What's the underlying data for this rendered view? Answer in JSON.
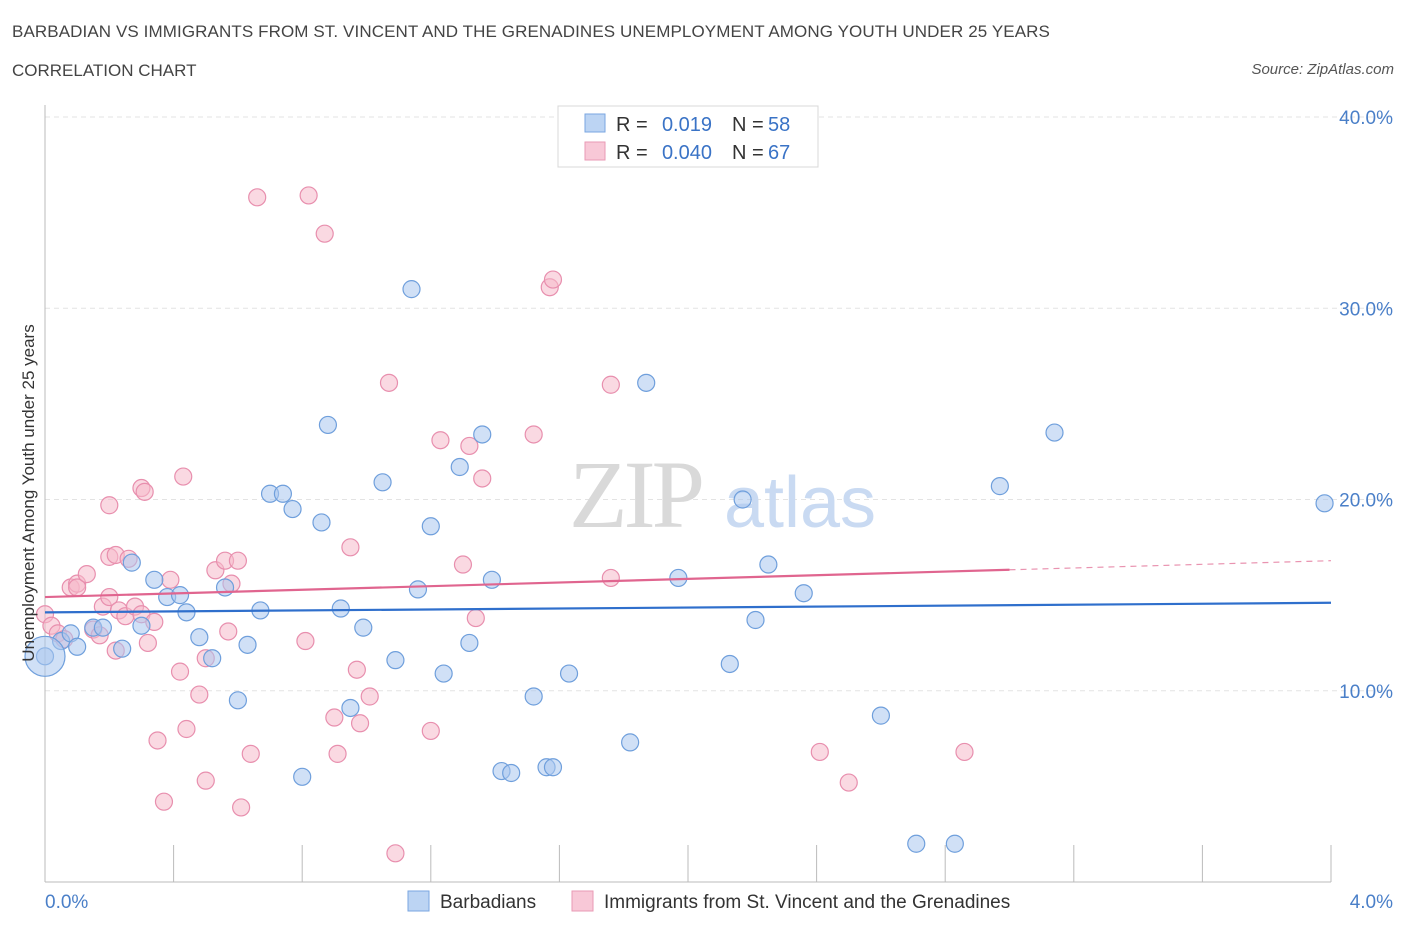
{
  "title": "BARBADIAN VS IMMIGRANTS FROM ST. VINCENT AND THE GRENADINES UNEMPLOYMENT AMONG YOUTH UNDER 25 YEARS",
  "subtitle": "CORRELATION CHART",
  "source": "Source: ZipAtlas.com",
  "watermark": {
    "zip": "ZIP",
    "atlas": "atlas"
  },
  "stats": [
    {
      "r_label": "R = ",
      "r_value": "0.019",
      "n_label": "N = ",
      "n_value": "58"
    },
    {
      "r_label": "R = ",
      "r_value": "0.040",
      "n_label": "N = ",
      "n_value": "67"
    }
  ],
  "chart_data": {
    "type": "scatter",
    "xlabel": "",
    "ylabel": "Unemployment Among Youth under 25 years",
    "xlim": [
      0,
      4
    ],
    "ylim": [
      0,
      40
    ],
    "x_ticks_labels": [
      "0.0%",
      "4.0%"
    ],
    "y_ticks": [
      10,
      20,
      30,
      40
    ],
    "y_ticks_labels": [
      "10.0%",
      "20.0%",
      "30.0%",
      "40.0%"
    ],
    "grid": true,
    "legend_position": "bottom",
    "series": [
      {
        "name": "Barbadians",
        "color": "#a9c7ee",
        "line_color": "#2f6fcc",
        "trend": {
          "x0": 0,
          "y0": 14.1,
          "x1": 4.0,
          "y1": 14.6,
          "dash_from": null
        },
        "points": [
          [
            0.0,
            11.8
          ],
          [
            0.05,
            12.6
          ],
          [
            0.08,
            13.0
          ],
          [
            0.1,
            12.3
          ],
          [
            0.15,
            13.3
          ],
          [
            0.18,
            13.3
          ],
          [
            0.24,
            12.2
          ],
          [
            0.27,
            16.7
          ],
          [
            0.3,
            13.4
          ],
          [
            0.34,
            15.8
          ],
          [
            0.38,
            14.9
          ],
          [
            0.42,
            15.0
          ],
          [
            0.44,
            14.1
          ],
          [
            0.48,
            12.8
          ],
          [
            0.52,
            11.7
          ],
          [
            0.56,
            15.4
          ],
          [
            0.6,
            9.5
          ],
          [
            0.63,
            12.4
          ],
          [
            0.67,
            14.2
          ],
          [
            0.7,
            20.3
          ],
          [
            0.74,
            20.3
          ],
          [
            0.77,
            19.5
          ],
          [
            0.8,
            5.5
          ],
          [
            0.86,
            18.8
          ],
          [
            0.88,
            23.9
          ],
          [
            0.92,
            14.3
          ],
          [
            0.95,
            9.1
          ],
          [
            0.99,
            13.3
          ],
          [
            1.05,
            20.9
          ],
          [
            1.09,
            11.6
          ],
          [
            1.14,
            31.0
          ],
          [
            1.16,
            15.3
          ],
          [
            1.2,
            18.6
          ],
          [
            1.24,
            10.9
          ],
          [
            1.29,
            21.7
          ],
          [
            1.32,
            12.5
          ],
          [
            1.36,
            23.4
          ],
          [
            1.39,
            15.8
          ],
          [
            1.42,
            5.8
          ],
          [
            1.45,
            5.7
          ],
          [
            1.52,
            9.7
          ],
          [
            1.56,
            6.0
          ],
          [
            1.58,
            6.0
          ],
          [
            1.63,
            10.9
          ],
          [
            1.82,
            7.3
          ],
          [
            1.87,
            26.1
          ],
          [
            1.97,
            15.9
          ],
          [
            2.13,
            11.4
          ],
          [
            2.17,
            20.0
          ],
          [
            2.21,
            13.7
          ],
          [
            2.25,
            16.6
          ],
          [
            2.36,
            15.1
          ],
          [
            2.6,
            8.7
          ],
          [
            2.71,
            2.0
          ],
          [
            2.83,
            2.0
          ],
          [
            2.97,
            20.7
          ],
          [
            3.14,
            23.5
          ],
          [
            3.98,
            19.8
          ]
        ],
        "large_point": [
          0.0,
          11.8
        ]
      },
      {
        "name": "Immigrants from St. Vincent and the Grenadines",
        "color": "#f5b9cb",
        "line_color": "#e0658f",
        "trend": {
          "x0": 0,
          "y0": 14.9,
          "x1": 4.0,
          "y1": 16.8,
          "dash_from": 3.0
        },
        "points": [
          [
            0.0,
            14.0
          ],
          [
            0.02,
            13.4
          ],
          [
            0.04,
            13.0
          ],
          [
            0.06,
            12.7
          ],
          [
            0.08,
            15.4
          ],
          [
            0.1,
            15.6
          ],
          [
            0.1,
            15.4
          ],
          [
            0.13,
            16.1
          ],
          [
            0.15,
            13.2
          ],
          [
            0.17,
            12.9
          ],
          [
            0.2,
            17.0
          ],
          [
            0.22,
            12.1
          ],
          [
            0.18,
            14.4
          ],
          [
            0.2,
            14.9
          ],
          [
            0.2,
            19.7
          ],
          [
            0.22,
            17.1
          ],
          [
            0.23,
            14.2
          ],
          [
            0.25,
            13.9
          ],
          [
            0.26,
            16.9
          ],
          [
            0.28,
            14.4
          ],
          [
            0.3,
            14.0
          ],
          [
            0.3,
            20.6
          ],
          [
            0.31,
            20.4
          ],
          [
            0.32,
            12.5
          ],
          [
            0.34,
            13.6
          ],
          [
            0.35,
            7.4
          ],
          [
            0.37,
            4.2
          ],
          [
            0.39,
            15.8
          ],
          [
            0.42,
            11.0
          ],
          [
            0.43,
            21.2
          ],
          [
            0.44,
            8.0
          ],
          [
            0.48,
            9.8
          ],
          [
            0.5,
            5.3
          ],
          [
            0.5,
            11.7
          ],
          [
            0.53,
            16.3
          ],
          [
            0.56,
            16.8
          ],
          [
            0.57,
            13.1
          ],
          [
            0.58,
            15.6
          ],
          [
            0.6,
            16.8
          ],
          [
            0.61,
            3.9
          ],
          [
            0.64,
            6.7
          ],
          [
            0.66,
            35.8
          ],
          [
            0.82,
            35.9
          ],
          [
            0.87,
            33.9
          ],
          [
            0.81,
            12.6
          ],
          [
            0.9,
            8.6
          ],
          [
            0.91,
            6.7
          ],
          [
            0.95,
            17.5
          ],
          [
            0.97,
            11.1
          ],
          [
            0.98,
            8.3
          ],
          [
            1.01,
            9.7
          ],
          [
            1.07,
            26.1
          ],
          [
            1.09,
            1.5
          ],
          [
            1.2,
            7.9
          ],
          [
            1.23,
            23.1
          ],
          [
            1.3,
            16.6
          ],
          [
            1.32,
            22.8
          ],
          [
            1.34,
            13.8
          ],
          [
            1.36,
            21.1
          ],
          [
            1.52,
            23.4
          ],
          [
            1.57,
            31.1
          ],
          [
            1.58,
            31.5
          ],
          [
            1.76,
            26.0
          ],
          [
            1.76,
            15.9
          ],
          [
            2.41,
            6.8
          ],
          [
            2.5,
            5.2
          ],
          [
            2.86,
            6.8
          ]
        ]
      }
    ]
  },
  "legend": [
    {
      "label": "Barbadians"
    },
    {
      "label": "Immigrants from St. Vincent and the Grenadines"
    }
  ]
}
